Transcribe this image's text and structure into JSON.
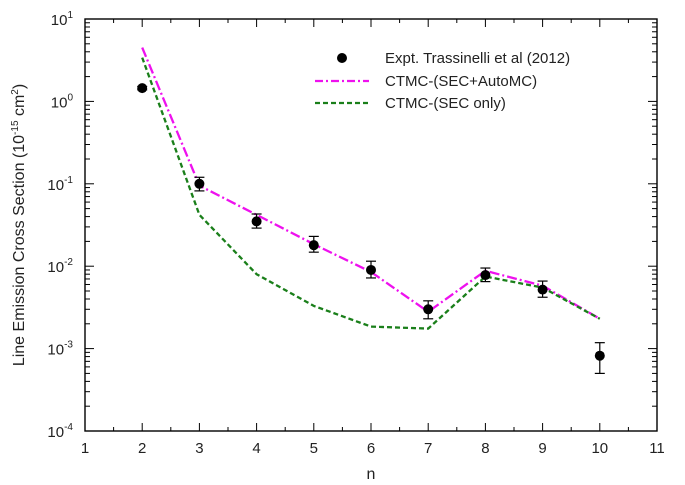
{
  "chart_data": {
    "type": "line",
    "xlabel": "n",
    "ylabel_main": "Line Emission Cross Section (10",
    "ylabel_sup": "-15",
    "ylabel_unit": " cm",
    "ylabel_sup2": "2",
    "ylabel_end": ")",
    "xlim": [
      1,
      11
    ],
    "ylim": [
      0.0001,
      10
    ],
    "yscale": "log",
    "grid": false,
    "legend_position": "top-right",
    "x_ticks": [
      "1",
      "2",
      "3",
      "4",
      "5",
      "6",
      "7",
      "8",
      "9",
      "10",
      "11"
    ],
    "y_ticks": [
      {
        "base": "10",
        "exp": "-4"
      },
      {
        "base": "10",
        "exp": "-3"
      },
      {
        "base": "10",
        "exp": "-2"
      },
      {
        "base": "10",
        "exp": "-1"
      },
      {
        "base": "10",
        "exp": "0"
      },
      {
        "base": "10",
        "exp": "1"
      }
    ],
    "series": [
      {
        "name": "Expt. Trassinelli et al (2012)",
        "kind": "scatter",
        "color": "#000000",
        "x": [
          2,
          3,
          4,
          5,
          6,
          7,
          8,
          9,
          10
        ],
        "y": [
          1.45,
          0.1,
          0.035,
          0.018,
          0.009,
          0.003,
          0.0078,
          0.0052,
          0.00082
        ],
        "err_low": [
          1.38,
          0.082,
          0.029,
          0.0148,
          0.0072,
          0.0023,
          0.0065,
          0.0042,
          0.0005
        ],
        "err_high": [
          1.52,
          0.12,
          0.043,
          0.023,
          0.0115,
          0.0038,
          0.0095,
          0.0066,
          0.00118
        ]
      },
      {
        "name": "CTMC-(SEC+AutoMC)",
        "kind": "line",
        "dash": "dashdot",
        "color": "#ee11ee",
        "x": [
          2,
          3,
          4,
          5,
          6,
          7,
          8,
          9,
          10
        ],
        "y": [
          4.5,
          0.095,
          0.042,
          0.0185,
          0.0085,
          0.0028,
          0.0088,
          0.0058,
          0.0023
        ]
      },
      {
        "name": "CTMC-(SEC only)",
        "kind": "line",
        "dash": "dashed",
        "color": "#1a7f1a",
        "x": [
          2,
          3,
          4,
          5,
          6,
          7,
          8,
          9,
          10
        ],
        "y": [
          3.4,
          0.042,
          0.008,
          0.0033,
          0.00185,
          0.00175,
          0.0075,
          0.0055,
          0.0023
        ]
      }
    ]
  }
}
